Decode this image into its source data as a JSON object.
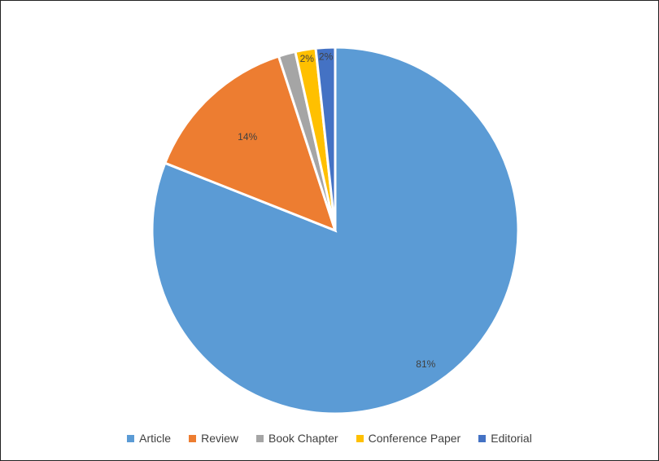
{
  "chart_data": {
    "type": "pie",
    "title": "",
    "categories": [
      "Article",
      "Review",
      "Book Chapter",
      "Conference Paper",
      "Editorial"
    ],
    "values": [
      81,
      14,
      1.5,
      1.8,
      1.7
    ],
    "labels": [
      "81%",
      "14%",
      "",
      "2%",
      "2%"
    ],
    "colors": [
      "#5B9BD5",
      "#ED7D31",
      "#A5A5A5",
      "#FFC000",
      "#4472C4"
    ],
    "start": "12 o'clock",
    "direction": "clockwise",
    "legend_position": "bottom"
  }
}
